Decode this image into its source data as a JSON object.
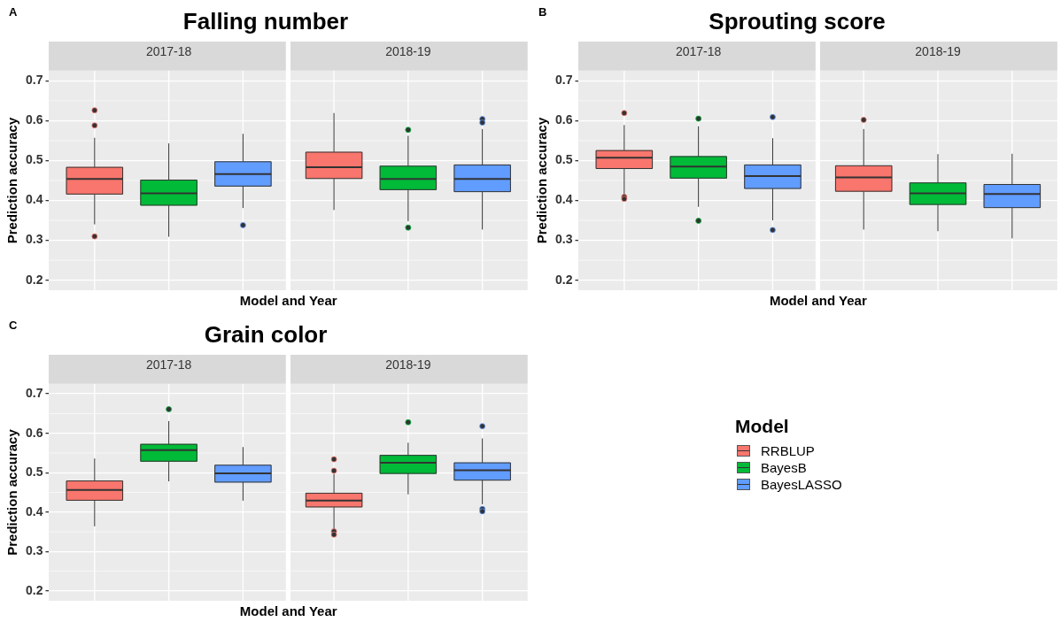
{
  "chart_data": [
    {
      "type": "box",
      "title": "Falling number",
      "categories": [
        "2017-18",
        "2018-19"
      ],
      "xlabel": "Model and Year",
      "ylabel": "Prediction accuracy",
      "ylim": [
        0.175,
        0.725
      ],
      "yticks": [
        0.2,
        0.3,
        0.4,
        0.5,
        0.6,
        0.7
      ],
      "grid": true,
      "annotations": [
        "A"
      ],
      "series": [
        {
          "color": "#f8766d",
          "boxes": [
            {
              "low": 0.34,
              "q1": 0.416,
              "median": 0.454,
              "q3": 0.483,
              "high": 0.557,
              "outliers": [
                0.626,
                0.588,
                0.31
              ]
            },
            {
              "low": 0.376,
              "q1": 0.455,
              "median": 0.483,
              "q3": 0.521,
              "high": 0.619
            }
          ]
        },
        {
          "color": "#00ba38",
          "boxes": [
            {
              "low": 0.309,
              "q1": 0.388,
              "median": 0.418,
              "q3": 0.451,
              "high": 0.543
            },
            {
              "low": 0.348,
              "q1": 0.427,
              "median": 0.454,
              "q3": 0.486,
              "high": 0.562,
              "outliers": [
                0.577,
                0.332
              ]
            }
          ]
        },
        {
          "color": "#619cff",
          "boxes": [
            {
              "low": 0.381,
              "q1": 0.436,
              "median": 0.466,
              "q3": 0.497,
              "high": 0.567,
              "outliers": [
                0.338
              ]
            },
            {
              "low": 0.327,
              "q1": 0.422,
              "median": 0.454,
              "q3": 0.489,
              "high": 0.579,
              "outliers": [
                0.604,
                0.595
              ]
            }
          ]
        }
      ]
    },
    {
      "type": "box",
      "title": "Sprouting score",
      "categories": [
        "2017-18",
        "2018-19"
      ],
      "xlabel": "Model and Year",
      "ylabel": "Prediction accuracy",
      "ylim": [
        0.175,
        0.725
      ],
      "yticks": [
        0.2,
        0.3,
        0.4,
        0.5,
        0.6,
        0.7
      ],
      "grid": true,
      "annotations": [
        "B"
      ],
      "series": [
        {
          "color": "#f8766d",
          "boxes": [
            {
              "low": 0.414,
              "q1": 0.48,
              "median": 0.507,
              "q3": 0.525,
              "high": 0.589,
              "outliers": [
                0.619,
                0.409,
                0.404
              ]
            },
            {
              "low": 0.327,
              "q1": 0.423,
              "median": 0.458,
              "q3": 0.487,
              "high": 0.579,
              "outliers": [
                0.602
              ]
            }
          ]
        },
        {
          "color": "#00ba38",
          "boxes": [
            {
              "low": 0.384,
              "q1": 0.456,
              "median": 0.485,
              "q3": 0.51,
              "high": 0.586,
              "outliers": [
                0.605,
                0.349
              ]
            },
            {
              "low": 0.323,
              "q1": 0.39,
              "median": 0.418,
              "q3": 0.444,
              "high": 0.516
            }
          ]
        },
        {
          "color": "#619cff",
          "boxes": [
            {
              "low": 0.35,
              "q1": 0.43,
              "median": 0.461,
              "q3": 0.489,
              "high": 0.556,
              "outliers": [
                0.609,
                0.326
              ]
            },
            {
              "low": 0.305,
              "q1": 0.382,
              "median": 0.416,
              "q3": 0.44,
              "high": 0.517
            }
          ]
        }
      ]
    },
    {
      "type": "box",
      "title": "Grain color",
      "categories": [
        "2017-18",
        "2018-19"
      ],
      "xlabel": "Model and Year",
      "ylabel": "Prediction accuracy",
      "ylim": [
        0.175,
        0.725
      ],
      "yticks": [
        0.2,
        0.3,
        0.4,
        0.5,
        0.6,
        0.7
      ],
      "grid": true,
      "annotations": [
        "C"
      ],
      "legend": "right",
      "legend_title": "Model",
      "series": [
        {
          "name": "RRBLUP",
          "color": "#f8766d",
          "boxes": [
            {
              "low": 0.364,
              "q1": 0.43,
              "median": 0.456,
              "q3": 0.479,
              "high": 0.536
            },
            {
              "low": 0.357,
              "q1": 0.413,
              "median": 0.429,
              "q3": 0.448,
              "high": 0.497,
              "outliers": [
                0.534,
                0.505,
                0.351,
                0.343
              ]
            }
          ]
        },
        {
          "name": "BayesB",
          "color": "#00ba38",
          "boxes": [
            {
              "low": 0.478,
              "q1": 0.529,
              "median": 0.557,
              "q3": 0.572,
              "high": 0.631,
              "outliers": [
                0.661
              ]
            },
            {
              "low": 0.445,
              "q1": 0.498,
              "median": 0.525,
              "q3": 0.544,
              "high": 0.576,
              "outliers": [
                0.628
              ]
            }
          ]
        },
        {
          "name": "BayesLASSO",
          "color": "#619cff",
          "boxes": [
            {
              "low": 0.429,
              "q1": 0.476,
              "median": 0.498,
              "q3": 0.519,
              "high": 0.565
            },
            {
              "low": 0.42,
              "q1": 0.481,
              "median": 0.506,
              "q3": 0.525,
              "high": 0.587,
              "outliers": [
                0.618,
                0.408,
                0.402
              ]
            }
          ]
        }
      ]
    }
  ]
}
